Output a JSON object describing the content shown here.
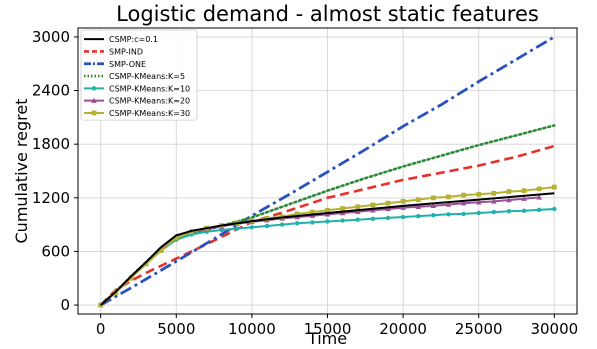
{
  "chart_data": {
    "type": "line",
    "title": "Logistic demand - almost static features",
    "xlabel": "Time",
    "ylabel": "Cumulative regret",
    "xlim": [
      -1500,
      31500
    ],
    "ylim": [
      -100,
      3100
    ],
    "xticks": [
      0,
      5000,
      10000,
      15000,
      20000,
      25000,
      30000
    ],
    "yticks": [
      0,
      600,
      1200,
      1800,
      2400,
      3000
    ],
    "xtick_labels": [
      "0",
      "5000",
      "10000",
      "15000",
      "20000",
      "25000",
      "30000"
    ],
    "ytick_labels": [
      "0",
      "600",
      "1200",
      "1800",
      "2400",
      "3000"
    ],
    "grid": true,
    "legend_position": "top-left",
    "series": [
      {
        "name": "CSMP:c=0.1",
        "color": "#000000",
        "style": "solid",
        "marker": "none",
        "x": [
          0,
          1000,
          2000,
          3000,
          4000,
          5000,
          6000,
          7000,
          8000,
          10000,
          12000,
          15000,
          20000,
          25000,
          30000
        ],
        "y": [
          0,
          150,
          320,
          480,
          650,
          780,
          830,
          860,
          890,
          940,
          980,
          1030,
          1110,
          1180,
          1250
        ]
      },
      {
        "name": "SMP-IND",
        "color": "#e8312a",
        "style": "dashed",
        "marker": "none",
        "x": [
          0,
          1000,
          2000,
          3000,
          5000,
          7000,
          10000,
          12500,
          15000,
          17500,
          20000,
          22500,
          25000,
          27500,
          30000
        ],
        "y": [
          0,
          170,
          270,
          360,
          520,
          680,
          930,
          1060,
          1200,
          1300,
          1400,
          1480,
          1560,
          1660,
          1780
        ]
      },
      {
        "name": "SMP-ONE",
        "color": "#2a52be",
        "style": "dashdot",
        "marker": "none",
        "x": [
          0,
          2500,
          5000,
          7500,
          10000,
          12500,
          15000,
          17500,
          20000,
          22500,
          25000,
          27500,
          30000
        ],
        "y": [
          0,
          240,
          490,
          740,
          1000,
          1240,
          1490,
          1740,
          2000,
          2240,
          2500,
          2750,
          3000
        ]
      },
      {
        "name": "CSMP-KMeans:K=5",
        "color": "#2e8b3a",
        "style": "dotted",
        "marker": "none",
        "x": [
          0,
          1000,
          2000,
          3000,
          4000,
          5000,
          7000,
          10000,
          12500,
          15000,
          17500,
          20000,
          22500,
          25000,
          27500,
          30000
        ],
        "y": [
          0,
          150,
          320,
          480,
          640,
          760,
          840,
          980,
          1130,
          1280,
          1420,
          1550,
          1670,
          1790,
          1900,
          2010
        ]
      },
      {
        "name": "CSMP-KMeans:K=10",
        "color": "#20b2aa",
        "style": "solid",
        "marker": "circle",
        "x": [
          0,
          1000,
          2000,
          3000,
          4000,
          5000,
          6000,
          7000,
          8000,
          9000,
          10000,
          11000,
          12000,
          13000,
          14000,
          15000,
          16000,
          17000,
          18000,
          19000,
          20000,
          21000,
          22000,
          23000,
          24000,
          25000,
          26000,
          27000,
          28000,
          29000,
          30000
        ],
        "y": [
          0,
          150,
          310,
          460,
          610,
          730,
          790,
          820,
          840,
          855,
          870,
          885,
          900,
          915,
          925,
          935,
          945,
          955,
          965,
          975,
          985,
          995,
          1005,
          1015,
          1020,
          1030,
          1040,
          1050,
          1055,
          1065,
          1075
        ]
      },
      {
        "name": "CSMP-KMeans:K=20",
        "color": "#9b4f96",
        "style": "solid",
        "marker": "triangle",
        "x": [
          0,
          1000,
          2000,
          3000,
          4000,
          5000,
          6000,
          7000,
          8000,
          9000,
          10000,
          11000,
          12000,
          13000,
          14000,
          15000,
          16000,
          17000,
          18000,
          19000,
          20000,
          21000,
          22000,
          23000,
          24000,
          25000,
          26000,
          27000,
          28000,
          29000
        ],
        "y": [
          0,
          150,
          310,
          460,
          620,
          760,
          820,
          850,
          880,
          910,
          930,
          950,
          970,
          985,
          1000,
          1015,
          1030,
          1045,
          1060,
          1075,
          1090,
          1100,
          1110,
          1125,
          1140,
          1150,
          1160,
          1175,
          1190,
          1205
        ]
      },
      {
        "name": "CSMP-KMeans:K=30",
        "color": "#b5b233",
        "style": "solid",
        "marker": "square",
        "x": [
          0,
          1000,
          2000,
          3000,
          4000,
          5000,
          6000,
          7000,
          8000,
          9000,
          10000,
          11000,
          12000,
          13000,
          14000,
          15000,
          16000,
          17000,
          18000,
          19000,
          20000,
          21000,
          22000,
          23000,
          24000,
          25000,
          26000,
          27000,
          28000,
          29000,
          30000
        ],
        "y": [
          0,
          140,
          300,
          460,
          610,
          750,
          820,
          860,
          890,
          920,
          940,
          970,
          990,
          1020,
          1040,
          1060,
          1080,
          1100,
          1120,
          1140,
          1160,
          1180,
          1200,
          1210,
          1230,
          1240,
          1250,
          1270,
          1280,
          1300,
          1320
        ]
      }
    ]
  }
}
